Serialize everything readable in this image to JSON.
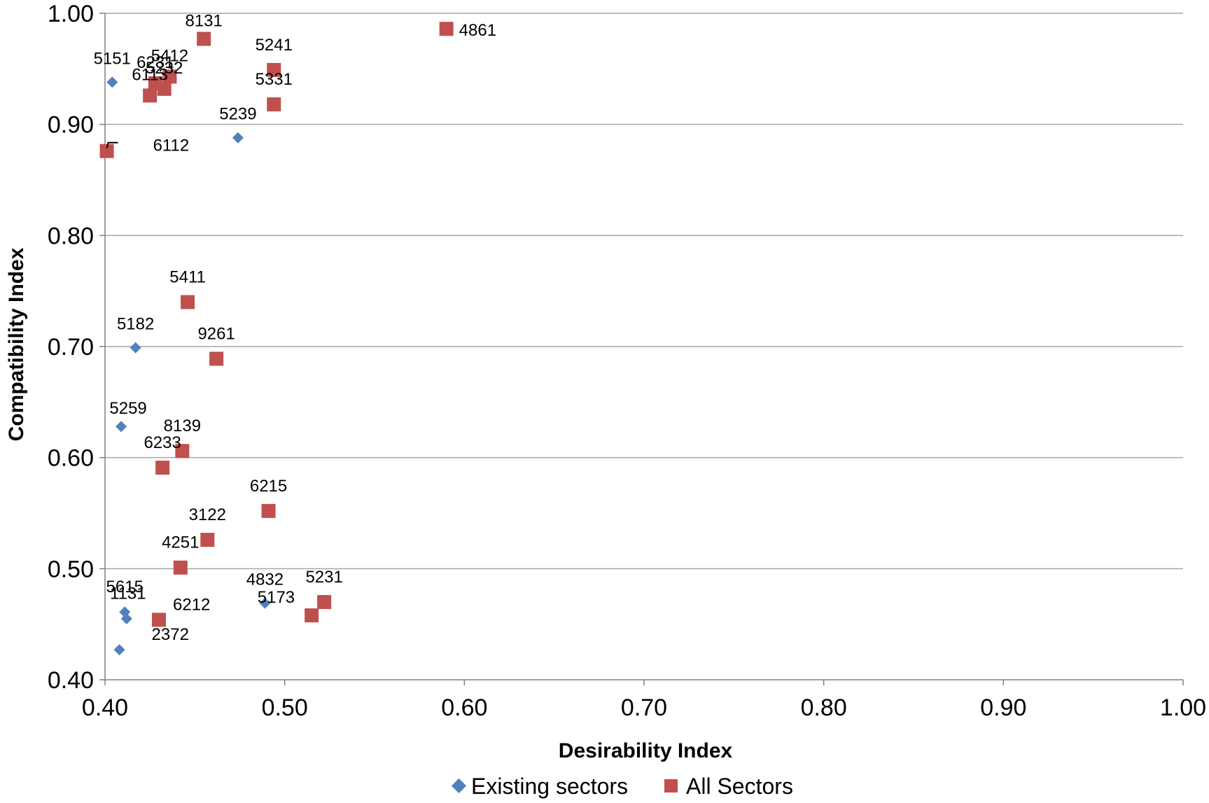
{
  "chart_data": {
    "type": "scatter",
    "xlabel": "Desirability Index",
    "ylabel": "Compatibility Index",
    "xlim": [
      0.4,
      1.0
    ],
    "ylim": [
      0.4,
      1.0
    ],
    "x_ticks": [
      "0.40",
      "0.50",
      "0.60",
      "0.70",
      "0.80",
      "0.90",
      "1.00"
    ],
    "y_ticks": [
      "0.40",
      "0.50",
      "0.60",
      "0.70",
      "0.80",
      "0.90",
      "1.00"
    ],
    "grid": "horizontal major gridlines",
    "legend_position": "bottom",
    "series": [
      {
        "name": "Existing sectors",
        "marker": "diamond",
        "color": "#4F81BD",
        "points": [
          {
            "label": "5151",
            "x": 0.404,
            "y": 0.938
          },
          {
            "label": "5239",
            "x": 0.474,
            "y": 0.888
          },
          {
            "label": "5182",
            "x": 0.417,
            "y": 0.699
          },
          {
            "label": "5259",
            "x": 0.409,
            "y": 0.628
          },
          {
            "label": "5615",
            "x": 0.411,
            "y": 0.461
          },
          {
            "label": "1131",
            "x": 0.412,
            "y": 0.455
          },
          {
            "label": "2372",
            "x": 0.408,
            "y": 0.427
          },
          {
            "label": "4832",
            "x": 0.489,
            "y": 0.469
          }
        ]
      },
      {
        "name": "All Sectors",
        "marker": "square",
        "color": "#C0504D",
        "points": [
          {
            "label": "4861",
            "x": 0.59,
            "y": 0.986
          },
          {
            "label": "8131",
            "x": 0.455,
            "y": 0.977
          },
          {
            "label": "5241",
            "x": 0.494,
            "y": 0.949
          },
          {
            "label": "5412",
            "x": 0.436,
            "y": 0.943
          },
          {
            "label": "6231",
            "x": 0.428,
            "y": 0.937
          },
          {
            "label": "5232",
            "x": 0.433,
            "y": 0.932
          },
          {
            "label": "6113",
            "x": 0.425,
            "y": 0.926
          },
          {
            "label": "5331",
            "x": 0.494,
            "y": 0.918
          },
          {
            "label": "6112",
            "x": 0.401,
            "y": 0.876
          },
          {
            "label": "5411",
            "x": 0.446,
            "y": 0.74
          },
          {
            "label": "9261",
            "x": 0.462,
            "y": 0.689
          },
          {
            "label": "8139",
            "x": 0.443,
            "y": 0.606
          },
          {
            "label": "6233",
            "x": 0.432,
            "y": 0.591
          },
          {
            "label": "6215",
            "x": 0.491,
            "y": 0.552
          },
          {
            "label": "3122",
            "x": 0.457,
            "y": 0.526
          },
          {
            "label": "4251",
            "x": 0.442,
            "y": 0.501
          },
          {
            "label": "6212",
            "x": 0.43,
            "y": 0.454
          },
          {
            "label": "5173",
            "x": 0.515,
            "y": 0.458
          },
          {
            "label": "5231",
            "x": 0.522,
            "y": 0.47
          }
        ]
      }
    ]
  }
}
